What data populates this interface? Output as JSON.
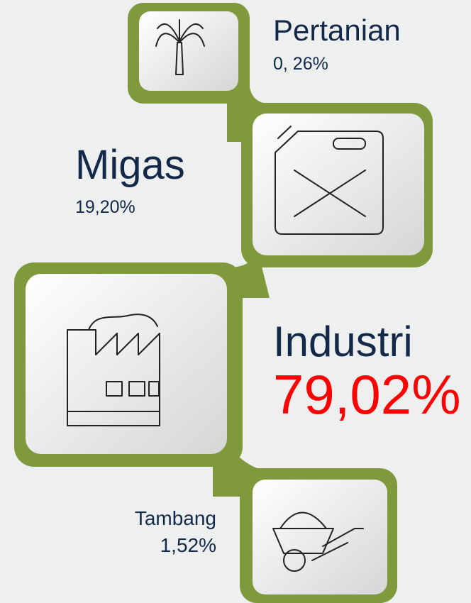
{
  "items": [
    {
      "label": "Pertanian",
      "value": "0, 26%"
    },
    {
      "label": "Migas",
      "value": "19,20%"
    },
    {
      "label": "Industri",
      "value": "79,02%"
    },
    {
      "label": "Tambang",
      "value": "1,52%"
    }
  ]
}
